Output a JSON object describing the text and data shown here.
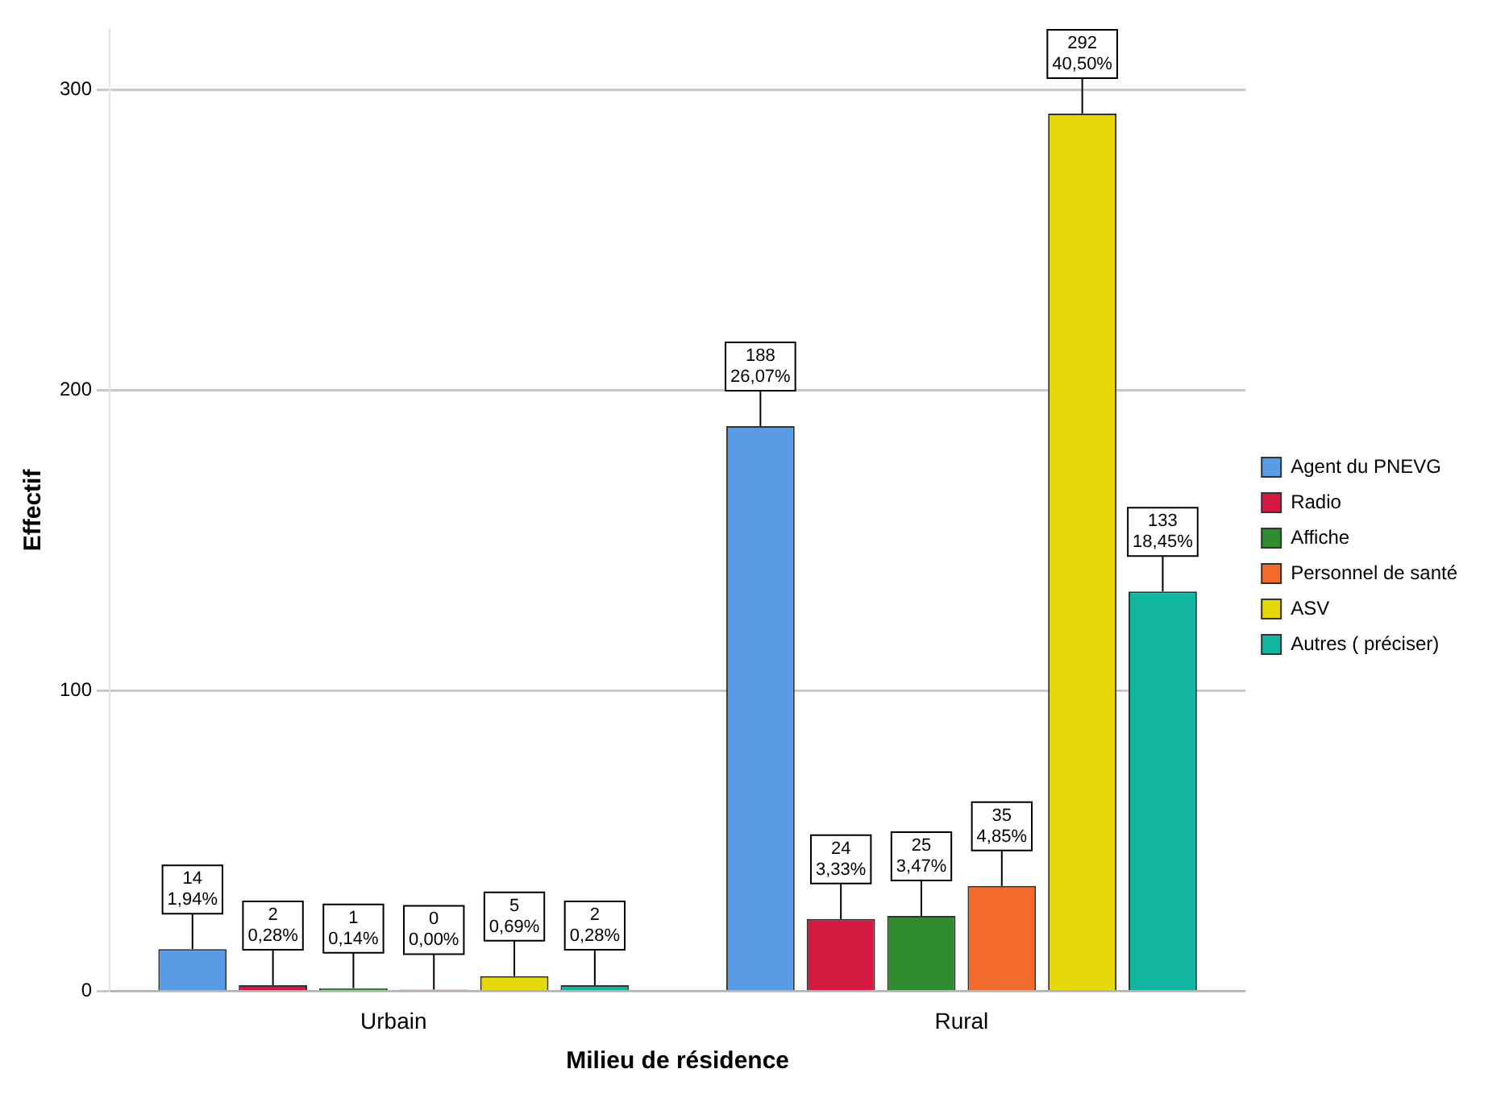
{
  "chart_data": {
    "type": "bar",
    "xlabel": "Milieu de résidence",
    "ylabel": "Effectif",
    "categories": [
      "Urbain",
      "Rural"
    ],
    "ylim": [
      0,
      320
    ],
    "yticks": [
      0,
      100,
      200,
      300
    ],
    "grid": "y",
    "legend": "right",
    "series": [
      {
        "name": "Agent du PNEVG",
        "color": "#5a9be6",
        "values": [
          14,
          188
        ],
        "value_labels": [
          "14\n1,94%",
          "188\n26,07%"
        ]
      },
      {
        "name": "Radio",
        "color": "#d3193f",
        "values": [
          2,
          24
        ],
        "value_labels": [
          "2\n0,28%",
          "24\n3,33%"
        ]
      },
      {
        "name": "Affiche",
        "color": "#2e8b2e",
        "values": [
          1,
          25
        ],
        "value_labels": [
          "1\n0,14%",
          "25\n3,47%"
        ]
      },
      {
        "name": "Personnel de santé",
        "color": "#f26b2a",
        "values": [
          0,
          35
        ],
        "value_labels": [
          "0\n0,00%",
          "35\n4,85%"
        ]
      },
      {
        "name": "ASV",
        "color": "#e6d70a",
        "values": [
          5,
          292
        ],
        "value_labels": [
          "5\n0,69%",
          "292\n40,50%"
        ]
      },
      {
        "name": "Autres ( préciser)",
        "color": "#12b5a0",
        "values": [
          2,
          133
        ],
        "value_labels": [
          "2\n0,28%",
          "133\n18,45%"
        ]
      }
    ]
  }
}
